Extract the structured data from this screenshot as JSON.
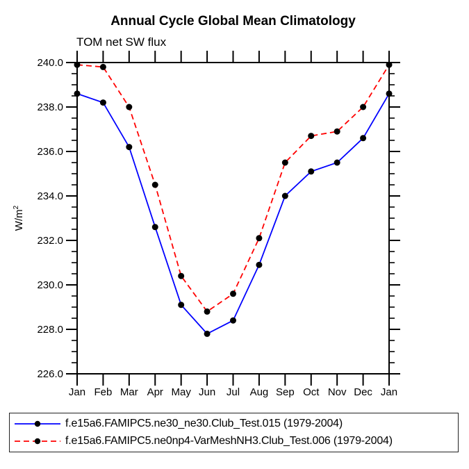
{
  "chart_data": {
    "type": "line",
    "title": "Annual Cycle Global Mean Climatology",
    "subtitle": "TOM net SW flux",
    "ylabel_base": "W/m",
    "ylabel_exponent": "2",
    "categories": [
      "Jan",
      "Feb",
      "Mar",
      "Apr",
      "May",
      "Jun",
      "Jul",
      "Aug",
      "Sep",
      "Oct",
      "Nov",
      "Dec",
      "Jan"
    ],
    "ylim": [
      226.0,
      240.0
    ],
    "ytick_step": 2.0,
    "ytick_minor_step": 0.5,
    "ytick_labels": [
      "226.0",
      "228.0",
      "230.0",
      "232.0",
      "234.0",
      "236.0",
      "238.0",
      "240.0"
    ],
    "grid": false,
    "legend_position": "bottom",
    "marker": {
      "shape": "circle",
      "color": "#000000"
    },
    "axis_color": "#000000",
    "series": [
      {
        "name": "f.e15a6.FAMIPC5.ne30_ne30.Club_Test.015 (1979-2004)",
        "color": "#0000ff",
        "line_style": "solid",
        "values": [
          238.6,
          238.2,
          236.2,
          232.6,
          229.1,
          227.8,
          228.4,
          230.9,
          234.0,
          235.1,
          235.5,
          236.6,
          238.6
        ]
      },
      {
        "name": "f.e15a6.FAMIPC5.ne0np4-VarMeshNH3.Club_Test.006 (1979-2004)",
        "color": "#ff0000",
        "line_style": "dashed",
        "values": [
          239.9,
          239.8,
          238.0,
          234.5,
          230.4,
          228.8,
          229.6,
          232.1,
          235.5,
          236.7,
          236.9,
          238.0,
          239.9
        ]
      }
    ]
  }
}
